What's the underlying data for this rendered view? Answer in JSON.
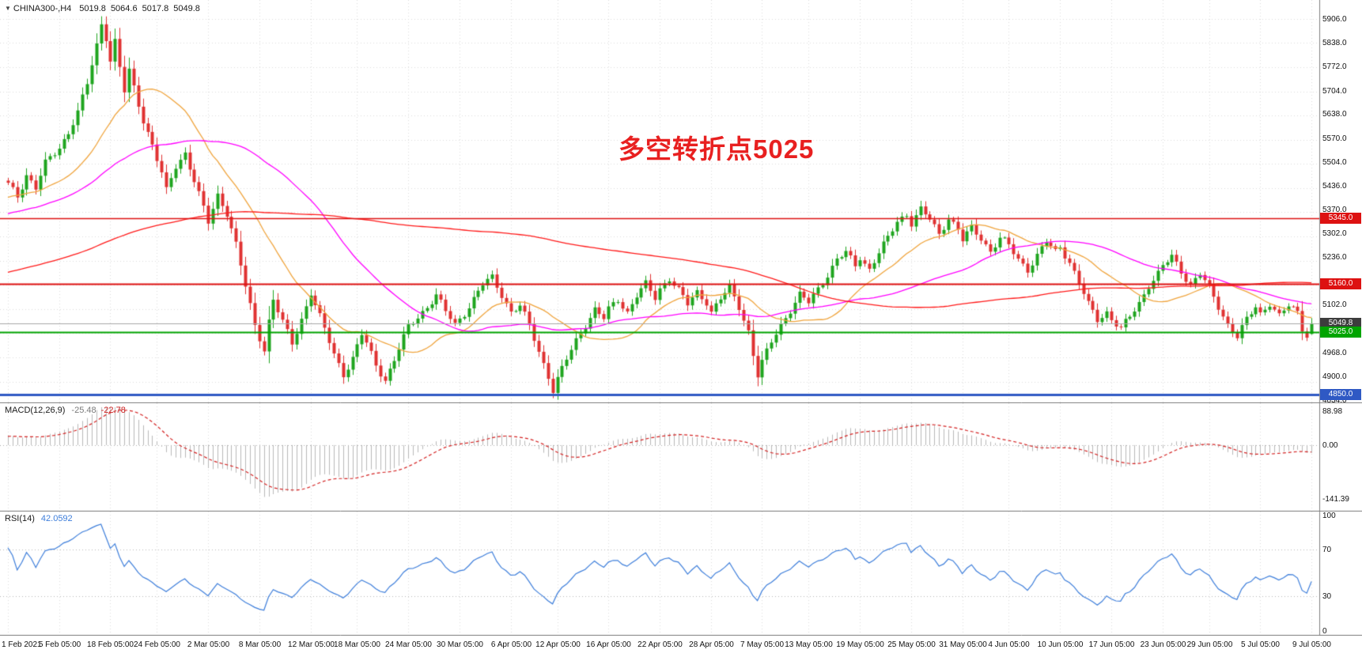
{
  "header": {
    "symbol_timeframe": "CHINA300-,H4",
    "open": "5019.8",
    "high": "5064.6",
    "low": "5017.8",
    "close": "5049.8"
  },
  "annotation": {
    "text": "多空转折点5025",
    "color": "#e82020"
  },
  "price_axis": {
    "labels": [
      "5906.0",
      "5838.0",
      "5772.0",
      "5704.0",
      "5638.0",
      "5570.0",
      "5504.0",
      "5436.0",
      "5370.0",
      "5302.0",
      "5236.0",
      "5102.0",
      "4968.0",
      "4900.0",
      "4834.0"
    ],
    "badges": [
      {
        "text": "5345.0",
        "bg": "#dd1111"
      },
      {
        "text": "5160.0",
        "bg": "#dd1111"
      },
      {
        "text": "5049.8",
        "bg": "#3d3d3d"
      },
      {
        "text": "5025.0",
        "bg": "#00a400"
      },
      {
        "text": "4850.0",
        "bg": "#2f59c4"
      }
    ]
  },
  "time_axis": {
    "labels": [
      "1 Feb 2021",
      "5 Feb 05:00",
      "18 Feb 05:00",
      "24 Feb 05:00",
      "2 Mar 05:00",
      "8 Mar 05:00",
      "12 Mar 05:00",
      "18 Mar 05:00",
      "24 Mar 05:00",
      "30 Mar 05:00",
      "6 Apr 05:00",
      "12 Apr 05:00",
      "16 Apr 05:00",
      "22 Apr 05:00",
      "28 Apr 05:00",
      "7 May 05:00",
      "13 May 05:00",
      "19 May 05:00",
      "25 May 05:00",
      "31 May 05:00",
      "4 Jun 05:00",
      "10 Jun 05:00",
      "17 Jun 05:00",
      "23 Jun 05:00",
      "29 Jun 05:00",
      "5 Jul 05:00",
      "9 Jul 05:00"
    ]
  },
  "indicators": {
    "macd": {
      "label": "MACD(12,26,9)",
      "value_main": "-25.48",
      "value_signal": "-22.78",
      "axis_labels": [
        "88.98",
        "0.00",
        "-141.39"
      ],
      "plot_max": 100,
      "plot_min": -165,
      "fast": 12,
      "slow": 26,
      "signal": 9,
      "histogram_color": "#b9b9b9",
      "signal_color": "#d42222"
    },
    "rsi": {
      "label": "RSI(14)",
      "value": "42.0592",
      "period": 14,
      "axis_labels": [
        "100",
        "70",
        "30",
        "0"
      ],
      "levels": [
        70,
        30
      ],
      "line_color": "#3d7edb"
    }
  },
  "chart_data": {
    "type": "candlestick",
    "symbol": "CHINA300-",
    "timeframe": "H4",
    "description": "CSI300 CFD, H4 candles Feb 1 - Jul 9 2021. close_path_anchors are [bar_index, close] points read off the chart; candles are interpolated between anchors.",
    "bars_total": 281,
    "price_axis_top": 5950,
    "price_axis_bottom": 4834,
    "grid_step": 68,
    "first_grid_price": 5906,
    "current": {
      "open": 5019.8,
      "high": 5064.6,
      "low": 5017.8,
      "close": 5049.8
    },
    "noise_amplitude": 13,
    "prehistory": {
      "bars": 150,
      "start": 4950,
      "end": 5430
    },
    "up_color": "#1fa51f",
    "down_color": "#e03232",
    "moving_averages": [
      {
        "period": 20,
        "color": "#f0a43c"
      },
      {
        "period": 48,
        "color": "#ff00ff"
      },
      {
        "period": 150,
        "color": "#ff1a1a"
      }
    ],
    "hlines": [
      {
        "price": 5345,
        "color": "#dd1111",
        "width": 1.4
      },
      {
        "price": 5160,
        "color": "#dd1111",
        "width": 2
      },
      {
        "price": 5025,
        "color": "#00a400",
        "width": 2
      },
      {
        "price": 4850,
        "color": "#2f59c4",
        "width": 3
      },
      {
        "price": 5049.8,
        "color": "#a8a8a8",
        "width": 1
      }
    ],
    "close_path_anchors": [
      [
        0,
        5440
      ],
      [
        2,
        5408
      ],
      [
        4,
        5468
      ],
      [
        6,
        5430
      ],
      [
        8,
        5498
      ],
      [
        11,
        5545
      ],
      [
        13,
        5588
      ],
      [
        15,
        5642
      ],
      [
        17,
        5722
      ],
      [
        19,
        5832
      ],
      [
        20,
        5893
      ],
      [
        21,
        5856
      ],
      [
        22,
        5790
      ],
      [
        23,
        5842
      ],
      [
        24,
        5768
      ],
      [
        25,
        5700
      ],
      [
        26,
        5758
      ],
      [
        27,
        5712
      ],
      [
        29,
        5622
      ],
      [
        31,
        5552
      ],
      [
        33,
        5470
      ],
      [
        34,
        5420
      ],
      [
        36,
        5492
      ],
      [
        38,
        5530
      ],
      [
        40,
        5452
      ],
      [
        42,
        5372
      ],
      [
        43,
        5332
      ],
      [
        45,
        5410
      ],
      [
        47,
        5362
      ],
      [
        49,
        5272
      ],
      [
        51,
        5152
      ],
      [
        53,
        5042
      ],
      [
        55,
        4978
      ],
      [
        56,
        5058
      ],
      [
        57,
        5118
      ],
      [
        59,
        5052
      ],
      [
        61,
        4992
      ],
      [
        63,
        5062
      ],
      [
        65,
        5138
      ],
      [
        66,
        5102
      ],
      [
        68,
        5032
      ],
      [
        70,
        4962
      ],
      [
        72,
        4908
      ],
      [
        74,
        4952
      ],
      [
        76,
        5018
      ],
      [
        77,
        4992
      ],
      [
        79,
        4932
      ],
      [
        81,
        4892
      ],
      [
        83,
        4948
      ],
      [
        85,
        5008
      ],
      [
        86,
        5038
      ],
      [
        88,
        5068
      ],
      [
        90,
        5098
      ],
      [
        92,
        5128
      ],
      [
        94,
        5082
      ],
      [
        96,
        5046
      ],
      [
        98,
        5080
      ],
      [
        100,
        5118
      ],
      [
        102,
        5158
      ],
      [
        104,
        5178
      ],
      [
        106,
        5132
      ],
      [
        108,
        5082
      ],
      [
        110,
        5098
      ],
      [
        112,
        5042
      ],
      [
        114,
        4972
      ],
      [
        116,
        4902
      ],
      [
        117,
        4862
      ],
      [
        118,
        4892
      ],
      [
        120,
        4948
      ],
      [
        122,
        5002
      ],
      [
        124,
        5048
      ],
      [
        126,
        5088
      ],
      [
        128,
        5062
      ],
      [
        129,
        5088
      ],
      [
        131,
        5118
      ],
      [
        133,
        5082
      ],
      [
        135,
        5128
      ],
      [
        137,
        5158
      ],
      [
        139,
        5122
      ],
      [
        140,
        5148
      ],
      [
        142,
        5178
      ],
      [
        144,
        5142
      ],
      [
        146,
        5102
      ],
      [
        148,
        5138
      ],
      [
        150,
        5112
      ],
      [
        151,
        5082
      ],
      [
        153,
        5118
      ],
      [
        155,
        5148
      ],
      [
        157,
        5098
      ],
      [
        159,
        5028
      ],
      [
        160,
        4962
      ],
      [
        161,
        4902
      ],
      [
        162,
        4938
      ],
      [
        164,
        4998
      ],
      [
        166,
        5048
      ],
      [
        168,
        5088
      ],
      [
        170,
        5128
      ],
      [
        172,
        5108
      ],
      [
        174,
        5148
      ],
      [
        176,
        5188
      ],
      [
        178,
        5228
      ],
      [
        180,
        5248
      ],
      [
        182,
        5212
      ],
      [
        183,
        5238
      ],
      [
        185,
        5202
      ],
      [
        187,
        5248
      ],
      [
        189,
        5288
      ],
      [
        191,
        5338
      ],
      [
        193,
        5358
      ],
      [
        194,
        5332
      ],
      [
        196,
        5368
      ],
      [
        198,
        5342
      ],
      [
        200,
        5302
      ],
      [
        202,
        5348
      ],
      [
        204,
        5312
      ],
      [
        205,
        5282
      ],
      [
        207,
        5318
      ],
      [
        209,
        5292
      ],
      [
        211,
        5252
      ],
      [
        213,
        5288
      ],
      [
        215,
        5268
      ],
      [
        217,
        5232
      ],
      [
        219,
        5202
      ],
      [
        221,
        5238
      ],
      [
        223,
        5278
      ],
      [
        225,
        5252
      ],
      [
        226,
        5268
      ],
      [
        228,
        5222
      ],
      [
        230,
        5162
      ],
      [
        232,
        5102
      ],
      [
        234,
        5062
      ],
      [
        236,
        5082
      ],
      [
        237,
        5062
      ],
      [
        239,
        5032
      ],
      [
        241,
        5068
      ],
      [
        243,
        5108
      ],
      [
        245,
        5158
      ],
      [
        247,
        5188
      ],
      [
        248,
        5208
      ],
      [
        250,
        5238
      ],
      [
        252,
        5198
      ],
      [
        254,
        5158
      ],
      [
        256,
        5188
      ],
      [
        258,
        5148
      ],
      [
        260,
        5098
      ],
      [
        262,
        5048
      ],
      [
        264,
        5012
      ],
      [
        266,
        5058
      ],
      [
        268,
        5098
      ],
      [
        269,
        5078
      ],
      [
        271,
        5108
      ],
      [
        273,
        5068
      ],
      [
        275,
        5098
      ],
      [
        277,
        5082
      ],
      [
        278,
        5038
      ],
      [
        279,
        5018
      ],
      [
        280,
        5049.8
      ]
    ]
  }
}
